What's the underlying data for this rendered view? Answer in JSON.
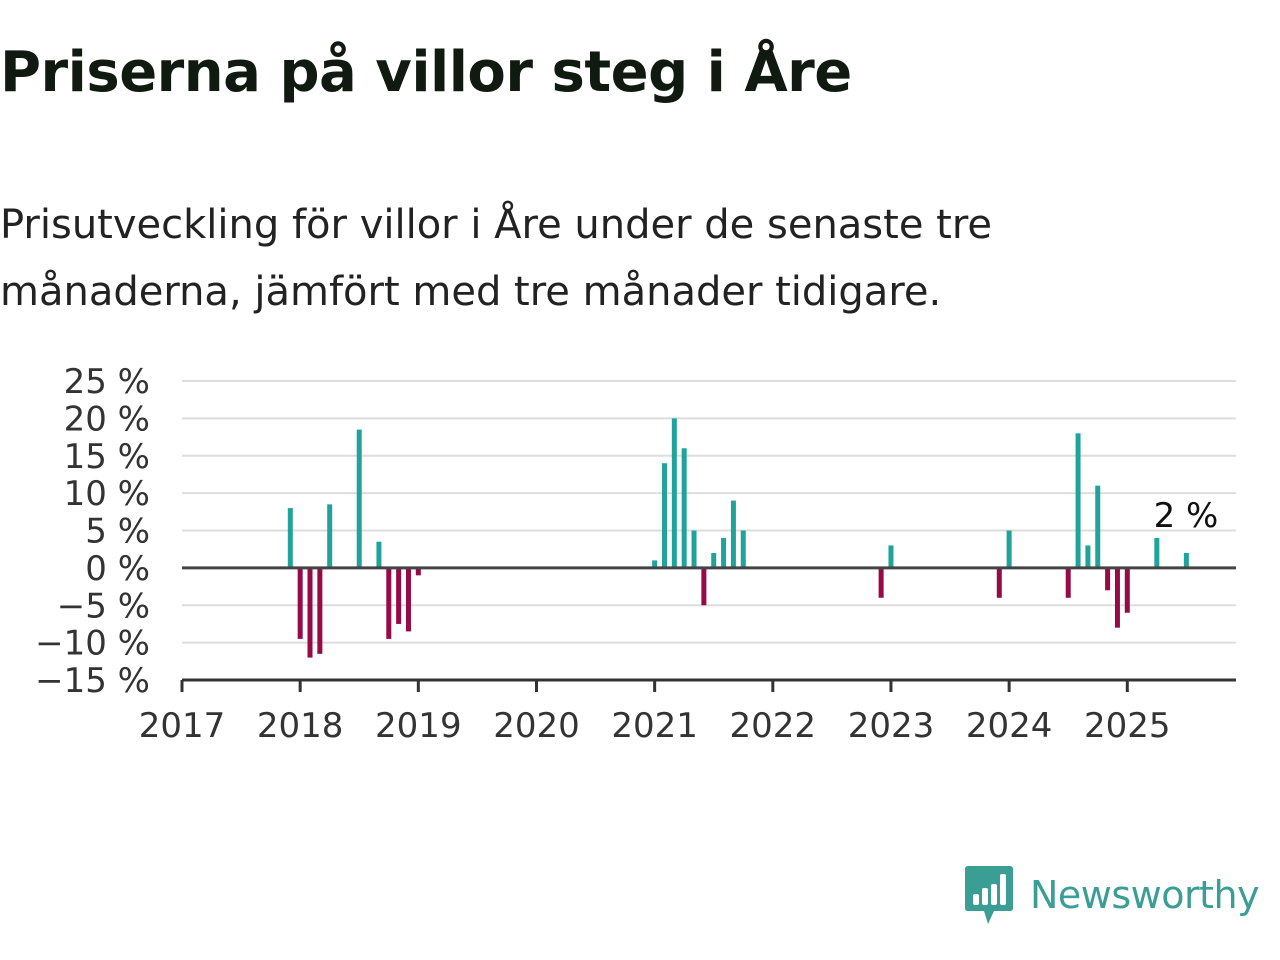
{
  "title": "Priserna på villor steg i Åre",
  "subtitle": "Prisutveckling för villor i Åre under de senaste tre månaderna, jämfört med tre månader tidigare.",
  "brand": {
    "name": "Newsworthy",
    "icon": "newsworthy-logo-icon",
    "color": "#3a9e94"
  },
  "chart_data": {
    "type": "bar",
    "title": "",
    "xlabel": "",
    "ylabel": "",
    "ylim": [
      -15,
      25
    ],
    "xlim": [
      2017,
      2025.92
    ],
    "yticks": [
      25,
      20,
      15,
      10,
      5,
      0,
      -5,
      -10,
      -15
    ],
    "ytick_labels": [
      "25 %",
      "20 %",
      "15 %",
      "10 %",
      "5 %",
      "0 %",
      "−5 %",
      "−10 %",
      "−15 %"
    ],
    "xticks": [
      2017,
      2018,
      2019,
      2020,
      2021,
      2022,
      2023,
      2024,
      2025
    ],
    "xtick_labels": [
      "2017",
      "2018",
      "2019",
      "2020",
      "2021",
      "2022",
      "2023",
      "2024",
      "2025"
    ],
    "grid": true,
    "colors": {
      "positive": "#1fa39a",
      "negative": "#960a46",
      "zero_line": "#444444",
      "grid": "#dddddd"
    },
    "annotation": {
      "text": "2 %",
      "x": "2025-07",
      "y": 2
    },
    "points": [
      {
        "x": "2017-12",
        "y": 8
      },
      {
        "x": "2018-01",
        "y": -9.5
      },
      {
        "x": "2018-02",
        "y": -12
      },
      {
        "x": "2018-03",
        "y": -11.5
      },
      {
        "x": "2018-04",
        "y": 8.5
      },
      {
        "x": "2018-07",
        "y": 18.5
      },
      {
        "x": "2018-09",
        "y": 3.5
      },
      {
        "x": "2018-10",
        "y": -9.5
      },
      {
        "x": "2018-11",
        "y": -7.5
      },
      {
        "x": "2018-12",
        "y": -8.5
      },
      {
        "x": "2019-01",
        "y": -1
      },
      {
        "x": "2021-01",
        "y": 1
      },
      {
        "x": "2021-02",
        "y": 14
      },
      {
        "x": "2021-03",
        "y": 20
      },
      {
        "x": "2021-04",
        "y": 16
      },
      {
        "x": "2021-05",
        "y": 5
      },
      {
        "x": "2021-06",
        "y": -5
      },
      {
        "x": "2021-07",
        "y": 2
      },
      {
        "x": "2021-08",
        "y": 4
      },
      {
        "x": "2021-09",
        "y": 9
      },
      {
        "x": "2021-10",
        "y": 5
      },
      {
        "x": "2022-12",
        "y": -4
      },
      {
        "x": "2023-01",
        "y": 3
      },
      {
        "x": "2023-12",
        "y": -4
      },
      {
        "x": "2024-01",
        "y": 5
      },
      {
        "x": "2024-07",
        "y": -4
      },
      {
        "x": "2024-08",
        "y": 18
      },
      {
        "x": "2024-09",
        "y": 3
      },
      {
        "x": "2024-10",
        "y": 11
      },
      {
        "x": "2024-11",
        "y": -3
      },
      {
        "x": "2024-12",
        "y": -8
      },
      {
        "x": "2025-01",
        "y": -6
      },
      {
        "x": "2025-04",
        "y": 4
      },
      {
        "x": "2025-07",
        "y": 2
      }
    ]
  }
}
